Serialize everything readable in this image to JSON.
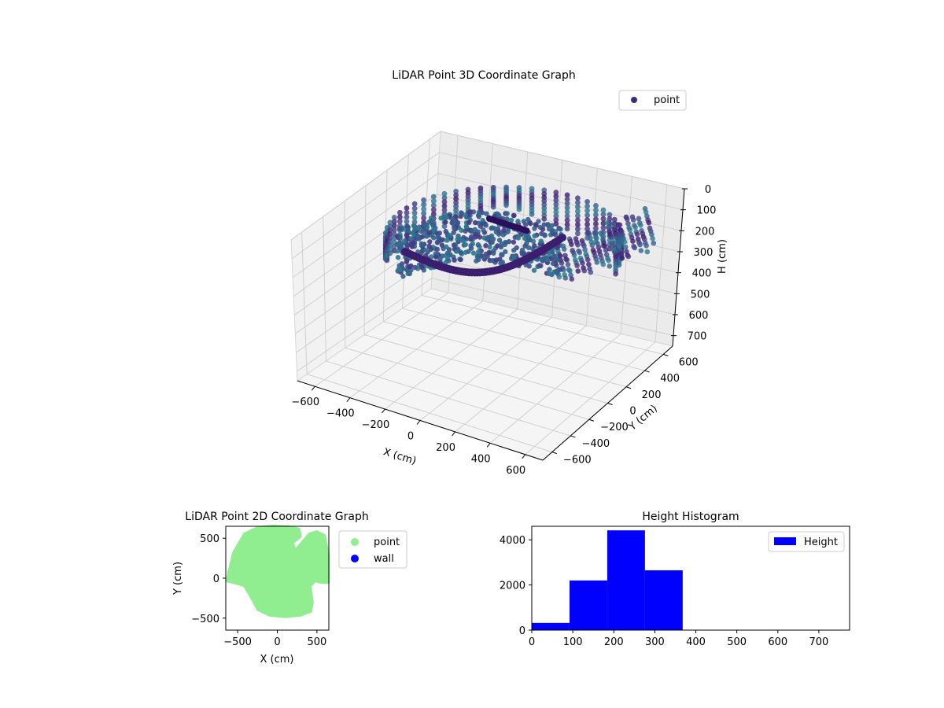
{
  "colors": {
    "point_3d": "#3a2e7a",
    "point_2d": "#90ee90",
    "wall": "#0000ff",
    "height": "#0000ff"
  },
  "chart_data": [
    {
      "type": "scatter",
      "projection": "3d",
      "title": "LiDAR Point 3D Coordinate Graph",
      "xlabel": "X (cm)",
      "ylabel": "Y (cm)",
      "zlabel": "H (cm)",
      "xlim": [
        -700,
        700
      ],
      "ylim": [
        -700,
        700
      ],
      "zlim": [
        750,
        0
      ],
      "z_inverted": true,
      "xticks": [
        "−600",
        "−400",
        "−200",
        "0",
        "200",
        "400",
        "600"
      ],
      "yticks": [
        "−600",
        "−400",
        "−200",
        "0",
        "200",
        "400",
        "600"
      ],
      "zticks": [
        "0",
        "100",
        "200",
        "300",
        "400",
        "500",
        "600",
        "700"
      ],
      "legend": {
        "position": "top-right",
        "entries": [
          "point"
        ]
      },
      "colormap": "viridis (colored by height)",
      "grid": true,
      "series": [
        {
          "name": "point",
          "description_points": "sampled outline of a room scan",
          "x": [
            -620,
            -560,
            -480,
            -400,
            -300,
            -200,
            -100,
            0,
            100,
            200,
            300,
            400,
            500,
            560,
            600,
            620
          ],
          "y": [
            350,
            420,
            480,
            520,
            540,
            550,
            550,
            545,
            530,
            500,
            460,
            400,
            320,
            220,
            100,
            -20
          ],
          "z": [
            250,
            230,
            210,
            200,
            190,
            180,
            180,
            185,
            190,
            200,
            210,
            230,
            250,
            270,
            290,
            300
          ]
        }
      ]
    },
    {
      "type": "scatter",
      "title": "LiDAR Point 2D Coordinate Graph",
      "xlabel": "X (cm)",
      "ylabel": "Y (cm)",
      "xlim": [
        -650,
        650
      ],
      "ylim": [
        -650,
        650
      ],
      "xticks": [
        "−500",
        "0",
        "500"
      ],
      "yticks": [
        "−500",
        "0",
        "500"
      ],
      "legend": {
        "position": "outside-right",
        "entries": [
          "point",
          "wall"
        ]
      },
      "series": [
        {
          "name": "point",
          "filled_outline": [
            [
              -600,
              150
            ],
            [
              -560,
              320
            ],
            [
              -420,
              560
            ],
            [
              -250,
              640
            ],
            [
              -60,
              660
            ],
            [
              150,
              650
            ],
            [
              280,
              620
            ],
            [
              300,
              520
            ],
            [
              200,
              440
            ],
            [
              230,
              360
            ],
            [
              400,
              560
            ],
            [
              500,
              590
            ],
            [
              600,
              540
            ],
            [
              650,
              300
            ],
            [
              650,
              -60
            ],
            [
              560,
              -60
            ],
            [
              480,
              -40
            ],
            [
              420,
              -100
            ],
            [
              450,
              -300
            ],
            [
              430,
              -420
            ],
            [
              300,
              -470
            ],
            [
              100,
              -490
            ],
            [
              -100,
              -470
            ],
            [
              -250,
              -400
            ],
            [
              -330,
              -250
            ],
            [
              -420,
              -100
            ],
            [
              -560,
              -60
            ],
            [
              -640,
              -40
            ],
            [
              -620,
              80
            ]
          ]
        },
        {
          "name": "wall",
          "x": [],
          "y": []
        }
      ]
    },
    {
      "type": "bar",
      "subtype": "histogram",
      "title": "Height Histogram",
      "xlim": [
        0,
        775
      ],
      "ylim": [
        0,
        4600
      ],
      "xticks": [
        "0",
        "100",
        "200",
        "300",
        "400",
        "500",
        "600",
        "700"
      ],
      "yticks": [
        "0",
        "2000",
        "4000"
      ],
      "legend": {
        "position": "top-right",
        "entries": [
          "Height"
        ]
      },
      "series": [
        {
          "name": "Height",
          "bins": [
            [
              0,
              92
            ],
            [
              92,
              184
            ],
            [
              184,
              276
            ],
            [
              276,
              368
            ],
            [
              368,
              460
            ],
            [
              460,
              552
            ],
            [
              552,
              644
            ],
            [
              644,
              736
            ]
          ],
          "values": [
            320,
            2200,
            4420,
            2650,
            0,
            0,
            0,
            0
          ]
        }
      ]
    }
  ]
}
